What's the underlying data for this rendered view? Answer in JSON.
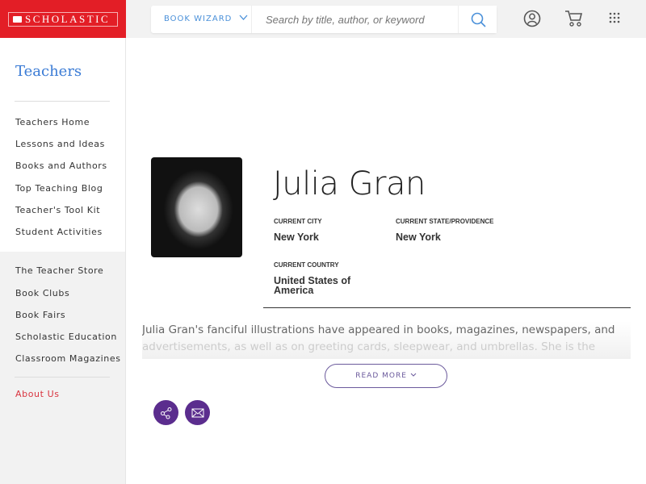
{
  "brand": {
    "logo_text": "SCHOLASTIC",
    "color": "#e31e26"
  },
  "header": {
    "book_wizard": "BOOK WIZARD",
    "search_placeholder": "Search by title, author, or keyword",
    "icons": [
      "search-icon",
      "user-icon",
      "cart-icon",
      "grid-icon"
    ]
  },
  "sidebar": {
    "title": "Teachers",
    "items": [
      "Teachers Home",
      "Lessons and Ideas",
      "Books and Authors",
      "Top Teaching Blog",
      "Teacher's Tool Kit",
      "Student Activities"
    ],
    "items2": [
      "The Teacher Store",
      "Book Clubs",
      "Book Fairs",
      "Scholastic Education",
      "Classroom Magazines"
    ],
    "about": "About Us"
  },
  "profile": {
    "name": "Julia Gran",
    "city_label": "CURRENT CITY",
    "city": "New York",
    "state_label": "CURRENT STATE/PROVIDENCE",
    "state": "New York",
    "country_label": "CURRENT COUNTRY",
    "country": "United States of America",
    "bio_line1": "Julia Gran's fanciful illustrations have appeared in books, magazines, newspapers, and",
    "bio_line2": "advertisements, as well as on greeting cards, sleepwear, and umbrellas. She is the",
    "read_more": "READ MORE"
  },
  "accent": "#5b2d8e"
}
